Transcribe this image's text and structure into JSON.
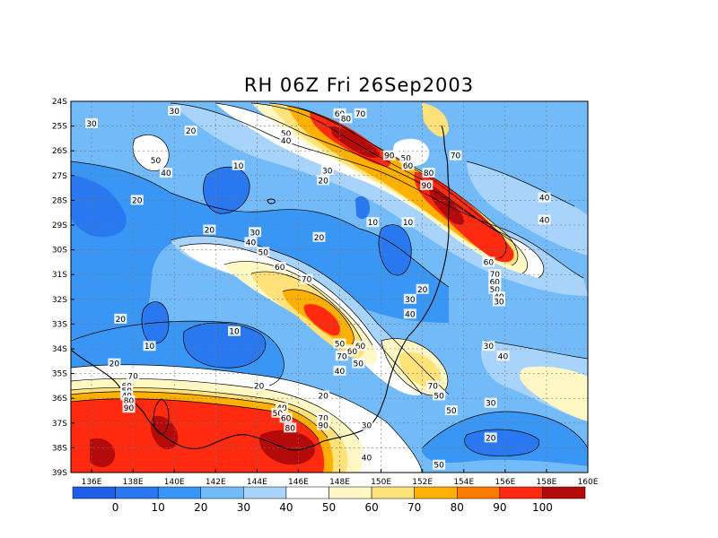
{
  "title": "RH 06Z Fri 26Sep2003",
  "map": {
    "lon_range": [
      135,
      160
    ],
    "lat_range": [
      -39,
      -24
    ],
    "x_ticks": [
      "136E",
      "138E",
      "140E",
      "142E",
      "144E",
      "146E",
      "148E",
      "150E",
      "152E",
      "154E",
      "156E",
      "158E",
      "160E"
    ],
    "y_ticks": [
      "24S",
      "25S",
      "26S",
      "27S",
      "28S",
      "29S",
      "30S",
      "31S",
      "32S",
      "33S",
      "34S",
      "35S",
      "36S",
      "37S",
      "38S",
      "39S"
    ],
    "grid": true,
    "contour_levels": [
      10,
      20,
      30,
      40,
      50,
      60,
      70,
      80,
      90
    ],
    "contour_labels": [
      {
        "text": "30",
        "lon": 136.0,
        "lat": -24.9
      },
      {
        "text": "30",
        "lon": 140.0,
        "lat": -24.4
      },
      {
        "text": "20",
        "lon": 140.8,
        "lat": -25.2
      },
      {
        "text": "50",
        "lon": 139.1,
        "lat": -26.4
      },
      {
        "text": "40",
        "lon": 139.6,
        "lat": -26.9
      },
      {
        "text": "10",
        "lon": 143.1,
        "lat": -26.6
      },
      {
        "text": "20",
        "lon": 138.2,
        "lat": -28.0
      },
      {
        "text": "50",
        "lon": 145.4,
        "lat": -25.3
      },
      {
        "text": "40",
        "lon": 145.4,
        "lat": -25.6
      },
      {
        "text": "60",
        "lon": 148.0,
        "lat": -24.5
      },
      {
        "text": "70",
        "lon": 149.0,
        "lat": -24.5
      },
      {
        "text": "80",
        "lon": 148.3,
        "lat": -24.7
      },
      {
        "text": "90",
        "lon": 150.4,
        "lat": -26.2
      },
      {
        "text": "50",
        "lon": 151.2,
        "lat": -26.3
      },
      {
        "text": "60",
        "lon": 151.3,
        "lat": -26.6
      },
      {
        "text": "70",
        "lon": 153.6,
        "lat": -26.2
      },
      {
        "text": "30",
        "lon": 147.4,
        "lat": -26.8
      },
      {
        "text": "20",
        "lon": 147.2,
        "lat": -27.2
      },
      {
        "text": "80",
        "lon": 152.3,
        "lat": -26.9
      },
      {
        "text": "90",
        "lon": 152.2,
        "lat": -27.4
      },
      {
        "text": "10",
        "lon": 149.6,
        "lat": -28.9
      },
      {
        "text": "10",
        "lon": 151.3,
        "lat": -28.9
      },
      {
        "text": "40",
        "lon": 157.9,
        "lat": -27.9
      },
      {
        "text": "40",
        "lon": 157.9,
        "lat": -28.8
      },
      {
        "text": "20",
        "lon": 141.7,
        "lat": -29.2
      },
      {
        "text": "30",
        "lon": 143.9,
        "lat": -29.3
      },
      {
        "text": "40",
        "lon": 143.7,
        "lat": -29.7
      },
      {
        "text": "50",
        "lon": 144.3,
        "lat": -30.1
      },
      {
        "text": "20",
        "lon": 147.0,
        "lat": -29.5
      },
      {
        "text": "60",
        "lon": 155.2,
        "lat": -30.5
      },
      {
        "text": "70",
        "lon": 155.5,
        "lat": -31.0
      },
      {
        "text": "60",
        "lon": 155.5,
        "lat": -31.3
      },
      {
        "text": "50",
        "lon": 155.5,
        "lat": -31.6
      },
      {
        "text": "40",
        "lon": 155.7,
        "lat": -31.9
      },
      {
        "text": "30",
        "lon": 155.7,
        "lat": -32.1
      },
      {
        "text": "60",
        "lon": 145.1,
        "lat": -30.7
      },
      {
        "text": "70",
        "lon": 146.4,
        "lat": -31.2
      },
      {
        "text": "20",
        "lon": 152.0,
        "lat": -31.6
      },
      {
        "text": "30",
        "lon": 151.4,
        "lat": -32.0
      },
      {
        "text": "40",
        "lon": 151.4,
        "lat": -32.6
      },
      {
        "text": "20",
        "lon": 137.4,
        "lat": -32.8
      },
      {
        "text": "10",
        "lon": 138.8,
        "lat": -33.9
      },
      {
        "text": "10",
        "lon": 142.9,
        "lat": -33.3
      },
      {
        "text": "50",
        "lon": 148.0,
        "lat": -33.8
      },
      {
        "text": "60",
        "lon": 149.0,
        "lat": -33.9
      },
      {
        "text": "60",
        "lon": 148.6,
        "lat": -34.1
      },
      {
        "text": "70",
        "lon": 148.1,
        "lat": -34.3
      },
      {
        "text": "50",
        "lon": 148.9,
        "lat": -34.6
      },
      {
        "text": "40",
        "lon": 148.0,
        "lat": -34.9
      },
      {
        "text": "30",
        "lon": 155.2,
        "lat": -33.9
      },
      {
        "text": "40",
        "lon": 155.9,
        "lat": -34.3
      },
      {
        "text": "20",
        "lon": 137.1,
        "lat": -34.6
      },
      {
        "text": "70",
        "lon": 138.0,
        "lat": -35.1
      },
      {
        "text": "60",
        "lon": 137.7,
        "lat": -35.5
      },
      {
        "text": "50",
        "lon": 137.7,
        "lat": -35.7
      },
      {
        "text": "40",
        "lon": 137.7,
        "lat": -35.9
      },
      {
        "text": "80",
        "lon": 137.8,
        "lat": -36.1
      },
      {
        "text": "90",
        "lon": 137.8,
        "lat": -36.4
      },
      {
        "text": "20",
        "lon": 144.1,
        "lat": -35.5
      },
      {
        "text": "40",
        "lon": 145.2,
        "lat": -36.4
      },
      {
        "text": "50",
        "lon": 145.0,
        "lat": -36.6
      },
      {
        "text": "60",
        "lon": 145.4,
        "lat": -36.8
      },
      {
        "text": "80",
        "lon": 145.6,
        "lat": -37.2
      },
      {
        "text": "20",
        "lon": 147.2,
        "lat": -35.9
      },
      {
        "text": "70",
        "lon": 147.2,
        "lat": -36.8
      },
      {
        "text": "90",
        "lon": 147.2,
        "lat": -37.1
      },
      {
        "text": "70",
        "lon": 152.5,
        "lat": -35.5
      },
      {
        "text": "50",
        "lon": 152.8,
        "lat": -35.9
      },
      {
        "text": "50",
        "lon": 153.4,
        "lat": -36.5
      },
      {
        "text": "30",
        "lon": 149.3,
        "lat": -37.1
      },
      {
        "text": "30",
        "lon": 155.3,
        "lat": -36.2
      },
      {
        "text": "20",
        "lon": 155.3,
        "lat": -37.6
      },
      {
        "text": "40",
        "lon": 149.3,
        "lat": -38.4
      },
      {
        "text": "50",
        "lon": 152.8,
        "lat": -38.7
      }
    ]
  },
  "colorbar": {
    "labels": [
      "0",
      "10",
      "20",
      "30",
      "40",
      "50",
      "60",
      "70",
      "80",
      "90",
      "100"
    ],
    "colors": [
      "#1e5ee6",
      "#2a78f0",
      "#3a96f5",
      "#73bbf8",
      "#a8d3fb",
      "#ffffff",
      "#fff8c4",
      "#ffe27a",
      "#ffb000",
      "#ff7b00",
      "#ff2a10",
      "#b40a0a"
    ]
  },
  "legend_colors": {
    "lt10": "#1e5ee6",
    "10": "#2a78f0",
    "20": "#3a96f5",
    "30": "#73bbf8",
    "40": "#a8d3fb",
    "50": "#ffffff",
    "60": "#fff8c4",
    "70": "#ffe27a",
    "80": "#ffb000",
    "90": "#ff7b00",
    "gt90": "#ff2a10",
    "max": "#b40a0a"
  }
}
